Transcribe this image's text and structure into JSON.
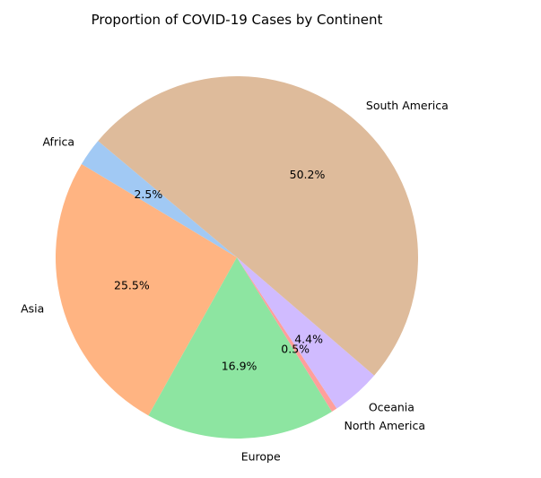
{
  "chart_data": {
    "type": "pie",
    "title": "Proportion of COVID-19 Cases by Continent",
    "categories": [
      "Africa",
      "Asia",
      "Europe",
      "North America",
      "Oceania",
      "South America"
    ],
    "values": [
      2.5,
      25.5,
      16.9,
      0.5,
      4.4,
      50.2
    ],
    "value_labels": [
      "2.5%",
      "25.5%",
      "16.9%",
      "0.5%",
      "4.4%",
      "50.2%"
    ],
    "colors": [
      "#a1c9f4",
      "#ffb482",
      "#8de5a1",
      "#ff9f9b",
      "#d0bbff",
      "#debb9b"
    ],
    "start_angle_deg": 140,
    "direction": "counterclockwise",
    "legend": "none"
  }
}
